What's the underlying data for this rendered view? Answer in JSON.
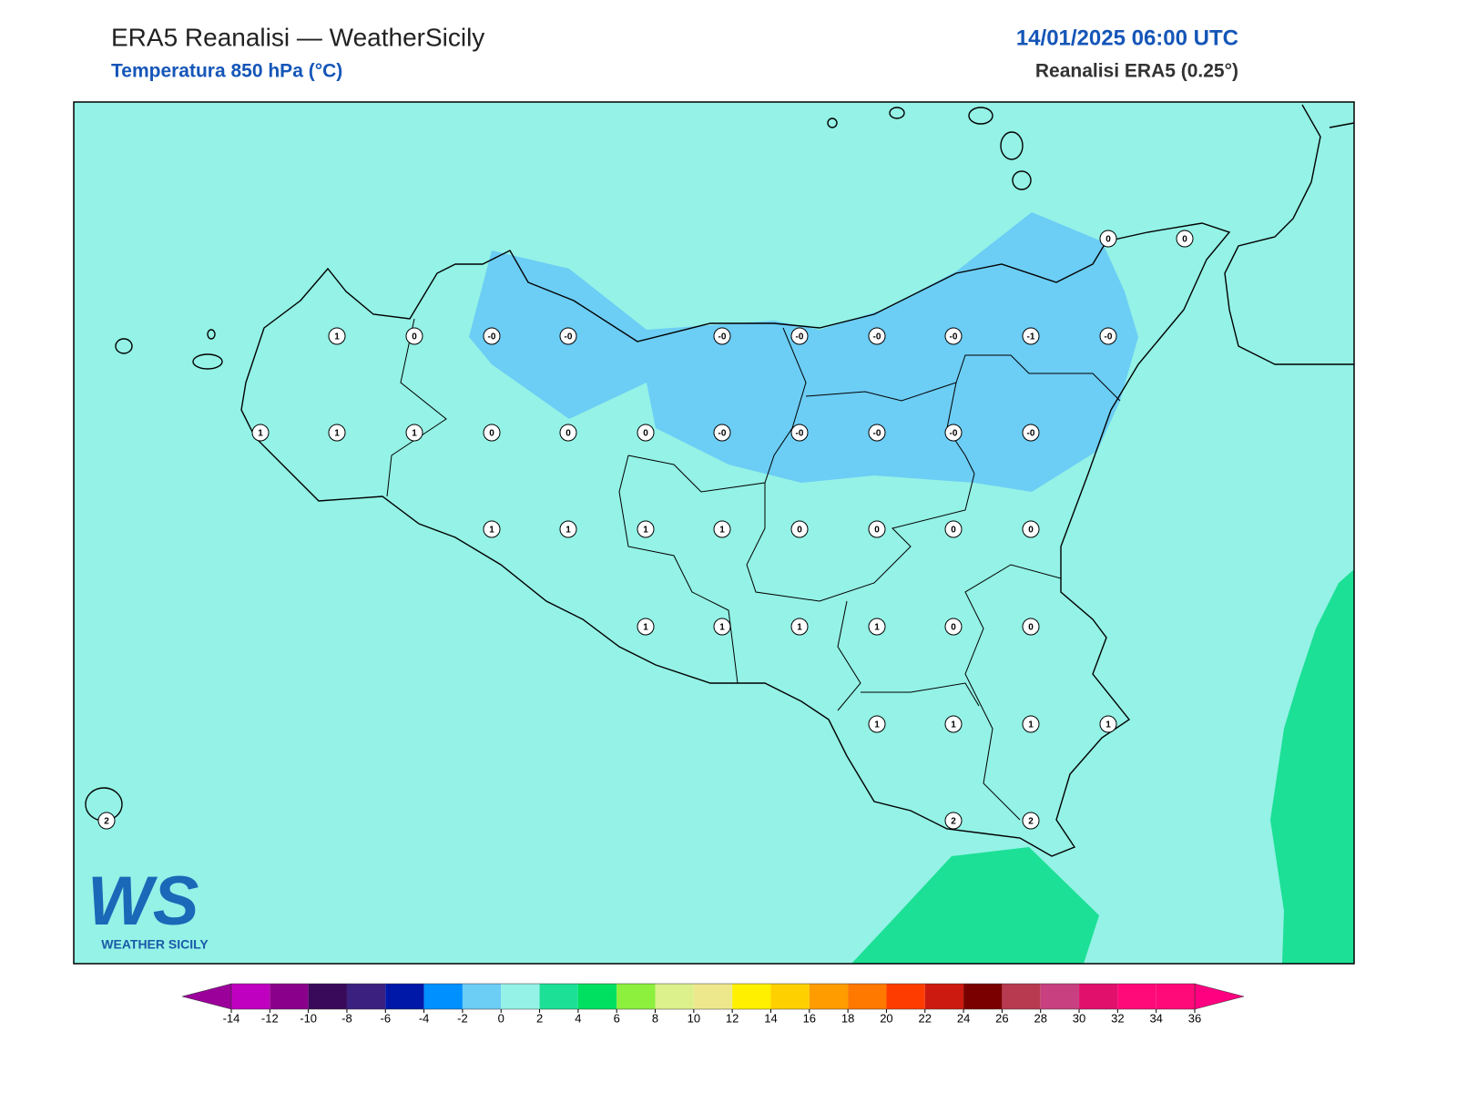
{
  "header": {
    "title": "ERA5 Reanalisi — WeatherSicily",
    "subtitle": "Temperatura 850 hPa (°C)",
    "datetime": "14/01/2025 06:00 UTC",
    "source": "Reanalisi ERA5 (0.25°)"
  },
  "points": [
    {
      "label": "0"
    },
    {
      "label": "0"
    },
    {
      "label": "1"
    },
    {
      "label": "0"
    },
    {
      "label": "-0"
    },
    {
      "label": "-0"
    },
    {
      "label": "-0"
    },
    {
      "label": "-0"
    },
    {
      "label": "-0"
    },
    {
      "label": "-0"
    },
    {
      "label": "-1"
    },
    {
      "label": "-0"
    },
    {
      "label": "1"
    },
    {
      "label": "1"
    },
    {
      "label": "1"
    },
    {
      "label": "0"
    },
    {
      "label": "0"
    },
    {
      "label": "0"
    },
    {
      "label": "-0"
    },
    {
      "label": "-0"
    },
    {
      "label": "-0"
    },
    {
      "label": "-0"
    },
    {
      "label": "-0"
    },
    {
      "label": "1"
    },
    {
      "label": "1"
    },
    {
      "label": "1"
    },
    {
      "label": "1"
    },
    {
      "label": "0"
    },
    {
      "label": "0"
    },
    {
      "label": "0"
    },
    {
      "label": "0"
    },
    {
      "label": "1"
    },
    {
      "label": "1"
    },
    {
      "label": "1"
    },
    {
      "label": "1"
    },
    {
      "label": "0"
    },
    {
      "label": "0"
    },
    {
      "label": "1"
    },
    {
      "label": "1"
    },
    {
      "label": "1"
    },
    {
      "label": "1"
    },
    {
      "label": "2"
    },
    {
      "label": "2"
    },
    {
      "label": "2"
    }
  ],
  "colorbar": {
    "ticks": [
      -14,
      -12,
      -10,
      -8,
      -6,
      -4,
      -2,
      0,
      2,
      4,
      6,
      8,
      10,
      12,
      14,
      16,
      18,
      20,
      22,
      24,
      26,
      28,
      30,
      32,
      34,
      36
    ],
    "colors": [
      "#c000c0",
      "#8b008b",
      "#3a0a5a",
      "#3b2080",
      "#0018a8",
      "#0090ff",
      "#6ccdf5",
      "#94f2e6",
      "#1ce096",
      "#00e060",
      "#8cf03c",
      "#dcf08c",
      "#eee88c",
      "#fff000",
      "#ffd000",
      "#ff9c00",
      "#ff7800",
      "#ff3c00",
      "#cc1a10",
      "#7a0000",
      "#b83a50",
      "#c84080",
      "#e0106c",
      "#ff0a78",
      "#ff0a78"
    ],
    "under": "#9b009b",
    "over": "#ff0080"
  },
  "logo": {
    "mark": "WS",
    "name": "WEATHER SICILY"
  }
}
